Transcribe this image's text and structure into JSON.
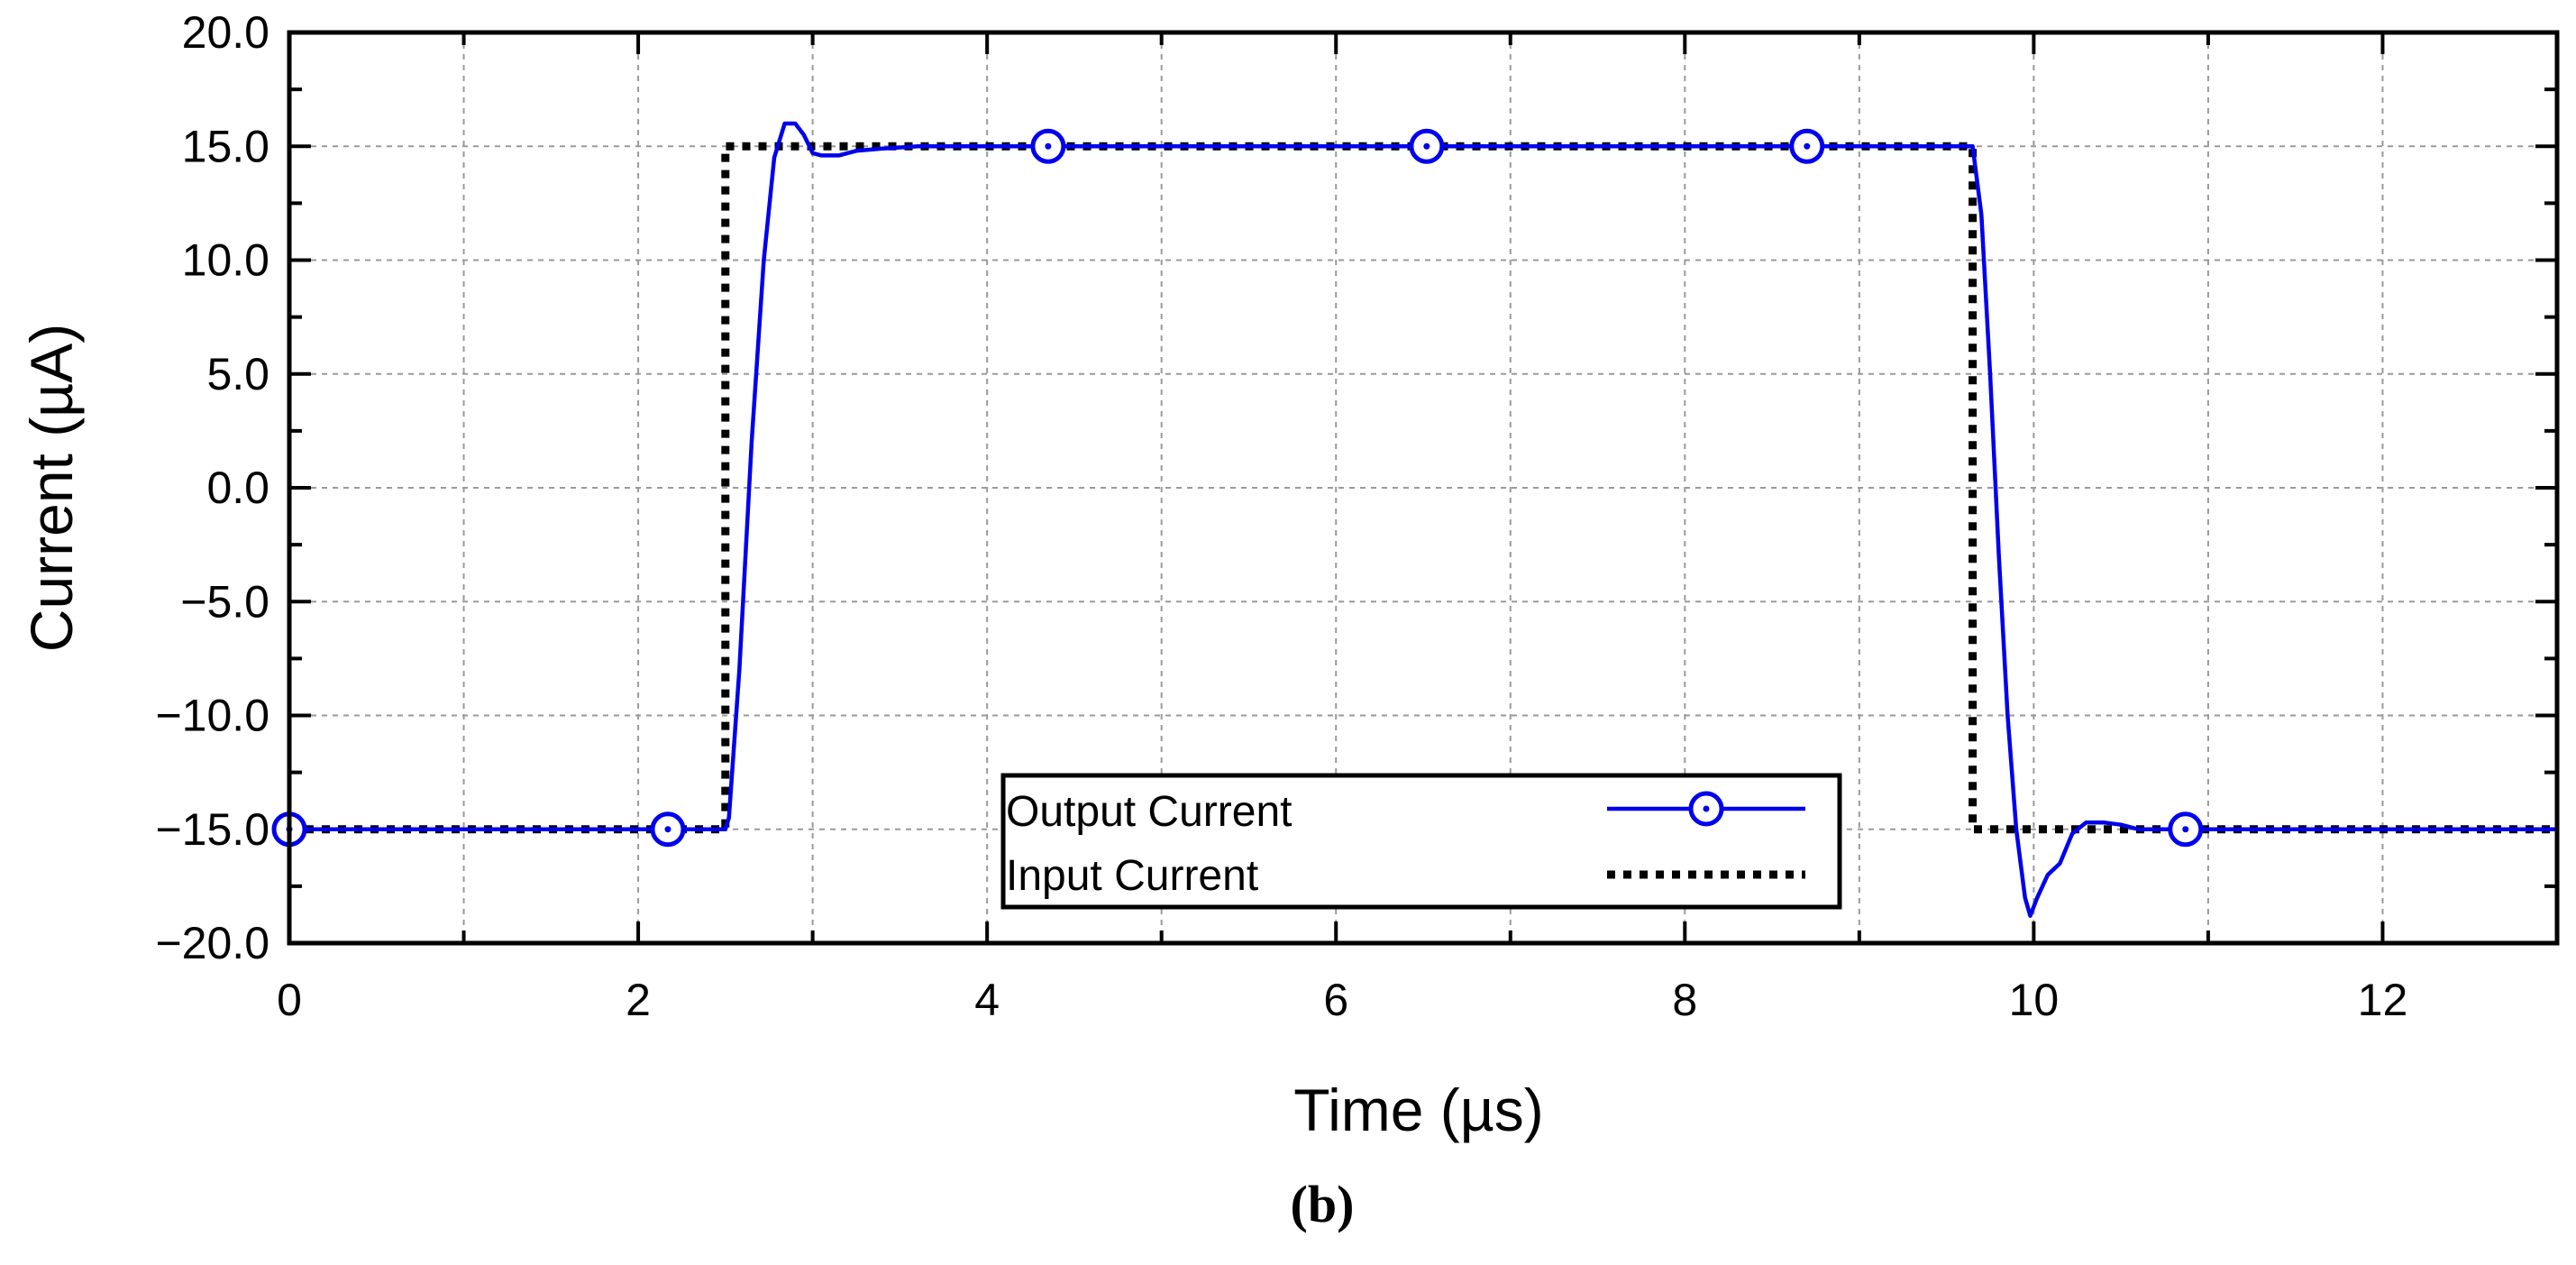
{
  "chart_data": {
    "type": "line",
    "title": "",
    "xlabel": "Time (µs)",
    "ylabel": "Current (µA)",
    "caption": "(b)",
    "xlim": [
      0,
      13
    ],
    "ylim": [
      -20,
      20
    ],
    "x_ticks": [
      0,
      2,
      4,
      6,
      8,
      10,
      12
    ],
    "x_tick_labels": [
      "0",
      "2",
      "4",
      "6",
      "8",
      "10",
      "12"
    ],
    "y_ticks": [
      20,
      15,
      10,
      5,
      0,
      -5,
      -10,
      -15,
      -20
    ],
    "y_tick_labels": [
      "20.0",
      "15.0",
      "10.0",
      "5.0",
      "0.0",
      "−5.0",
      "−10.0",
      "−15.0",
      "−20.0"
    ],
    "grid": true,
    "legend_position": "bottom-center",
    "series": [
      {
        "name": "Output Current",
        "color": "#0000ee",
        "style": "solid",
        "marker": "circle",
        "markers_x": [
          0,
          2.17,
          4.35,
          6.52,
          8.7,
          10.87
        ],
        "x": [
          0,
          2.5,
          2.52,
          2.58,
          2.65,
          2.72,
          2.78,
          2.84,
          2.9,
          2.95,
          3.0,
          3.05,
          3.15,
          3.25,
          3.4,
          3.6,
          4.0,
          5.0,
          6.0,
          7.0,
          8.0,
          9.0,
          9.65,
          9.7,
          9.75,
          9.8,
          9.85,
          9.9,
          9.95,
          9.98,
          10.02,
          10.08,
          10.15,
          10.22,
          10.3,
          10.4,
          10.5,
          10.6,
          10.8,
          11.0,
          12.0,
          13.0
        ],
        "y": [
          -15,
          -15,
          -14.5,
          -8,
          2,
          10,
          14.5,
          16,
          16,
          15.5,
          14.7,
          14.6,
          14.6,
          14.8,
          14.9,
          15,
          15,
          15,
          15,
          15,
          15,
          15,
          15,
          12,
          5,
          -3,
          -10,
          -15,
          -18,
          -18.8,
          -18,
          -17,
          -16.5,
          -15.2,
          -14.7,
          -14.7,
          -14.8,
          -15,
          -15,
          -15,
          -15,
          -15
        ]
      },
      {
        "name": "Input Current",
        "color": "#000000",
        "style": "dotted",
        "x": [
          0,
          2.5,
          2.5,
          9.65,
          9.65,
          13
        ],
        "y": [
          -15,
          -15,
          15,
          15,
          -15,
          -15
        ]
      }
    ]
  }
}
